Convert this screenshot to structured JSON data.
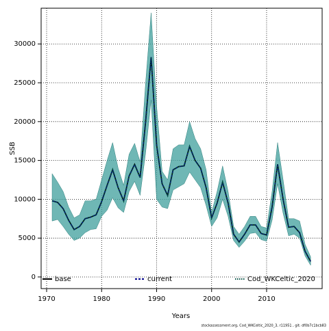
{
  "chart_data": {
    "type": "line",
    "x_label": "Years",
    "y_label": "SSB",
    "footer": "stockassessment.org, Cod_WKCeltic_2020_3, r11951 , git: df0b7c1bcb83",
    "x": [
      1971,
      1972,
      1973,
      1974,
      1975,
      1976,
      1977,
      1978,
      1979,
      1980,
      1981,
      1982,
      1983,
      1984,
      1985,
      1986,
      1987,
      1988,
      1989,
      1990,
      1991,
      1992,
      1993,
      1994,
      1995,
      1996,
      1997,
      1998,
      1999,
      2000,
      2001,
      2002,
      2003,
      2004,
      2005,
      2006,
      2007,
      2008,
      2009,
      2010,
      2011,
      2012,
      2013,
      2014,
      2015,
      2016,
      2017,
      2018
    ],
    "series": [
      {
        "name": "base",
        "color": "#000000",
        "style": "solid",
        "values": [
          9800,
          9600,
          8800,
          7300,
          6100,
          6500,
          7500,
          7700,
          8000,
          9700,
          11800,
          13800,
          11500,
          9800,
          13000,
          14500,
          12800,
          20000,
          28300,
          17000,
          12000,
          10500,
          13800,
          14200,
          14300,
          16800,
          15000,
          14000,
          11500,
          7600,
          9500,
          12200,
          9500,
          5500,
          4500,
          5500,
          6700,
          6700,
          5600,
          5400,
          9000,
          14500,
          10000,
          6400,
          6500,
          5700,
          3300,
          2000
        ]
      },
      {
        "name": "current",
        "color": "#00008b",
        "style": "dashed",
        "values": [
          9800,
          9600,
          8800,
          7300,
          6100,
          6500,
          7500,
          7700,
          8000,
          9700,
          11800,
          13800,
          11500,
          9800,
          13000,
          14500,
          12800,
          20000,
          28300,
          17000,
          12000,
          10500,
          13800,
          14200,
          14300,
          16800,
          15000,
          14000,
          11500,
          7600,
          9500,
          12200,
          9500,
          5500,
          4500,
          5500,
          6700,
          6700,
          5600,
          5400,
          9000,
          14500,
          10000,
          6400,
          6500,
          5700,
          3300,
          2000
        ]
      },
      {
        "name": "Cod_WKCeltic_2020",
        "color": "#004d40",
        "style": "dotted",
        "values": [
          9800,
          9600,
          8800,
          7300,
          6100,
          6500,
          7500,
          7700,
          8000,
          9700,
          11800,
          13800,
          11500,
          9800,
          13000,
          14500,
          12800,
          20000,
          28300,
          17000,
          12000,
          10500,
          13800,
          14200,
          14300,
          16800,
          15000,
          14000,
          11500,
          7600,
          9500,
          12200,
          9500,
          5500,
          4500,
          5500,
          6700,
          6700,
          5600,
          5400,
          9000,
          14500,
          10000,
          6400,
          6500,
          5700,
          3300,
          2000
        ]
      }
    ],
    "band": {
      "color": "#3f9f9c",
      "upper": [
        13300,
        12200,
        11000,
        9000,
        7600,
        8000,
        9800,
        9800,
        10000,
        12500,
        15000,
        17300,
        14000,
        11800,
        15800,
        17200,
        14800,
        25000,
        34000,
        22000,
        13600,
        12500,
        16500,
        17000,
        17000,
        20000,
        17800,
        16500,
        13800,
        8300,
        11000,
        14300,
        11000,
        6500,
        5500,
        6500,
        7800,
        7800,
        6500,
        6300,
        11000,
        17300,
        12500,
        7500,
        7500,
        7200,
        4200,
        2600
      ],
      "lower": [
        7200,
        7400,
        6500,
        5500,
        4700,
        5000,
        5700,
        6100,
        6200,
        7800,
        8600,
        10200,
        8900,
        8300,
        11000,
        12300,
        10500,
        16000,
        22800,
        10000,
        9000,
        8800,
        11200,
        11600,
        12000,
        13500,
        12500,
        11500,
        9200,
        6500,
        7600,
        10000,
        7800,
        4700,
        3800,
        4600,
        5600,
        5700,
        4800,
        4600,
        7300,
        12000,
        8200,
        5300,
        5500,
        5000,
        2700,
        1500
      ]
    },
    "xlim": [
      1969,
      2020.1
    ],
    "ylim": [
      -1500,
      34600
    ],
    "xticks": [
      1970,
      1980,
      1990,
      2000,
      2010
    ],
    "yticks": [
      0,
      5000,
      10000,
      15000,
      20000,
      25000,
      30000
    ],
    "grid": true,
    "legend": "bottom"
  }
}
